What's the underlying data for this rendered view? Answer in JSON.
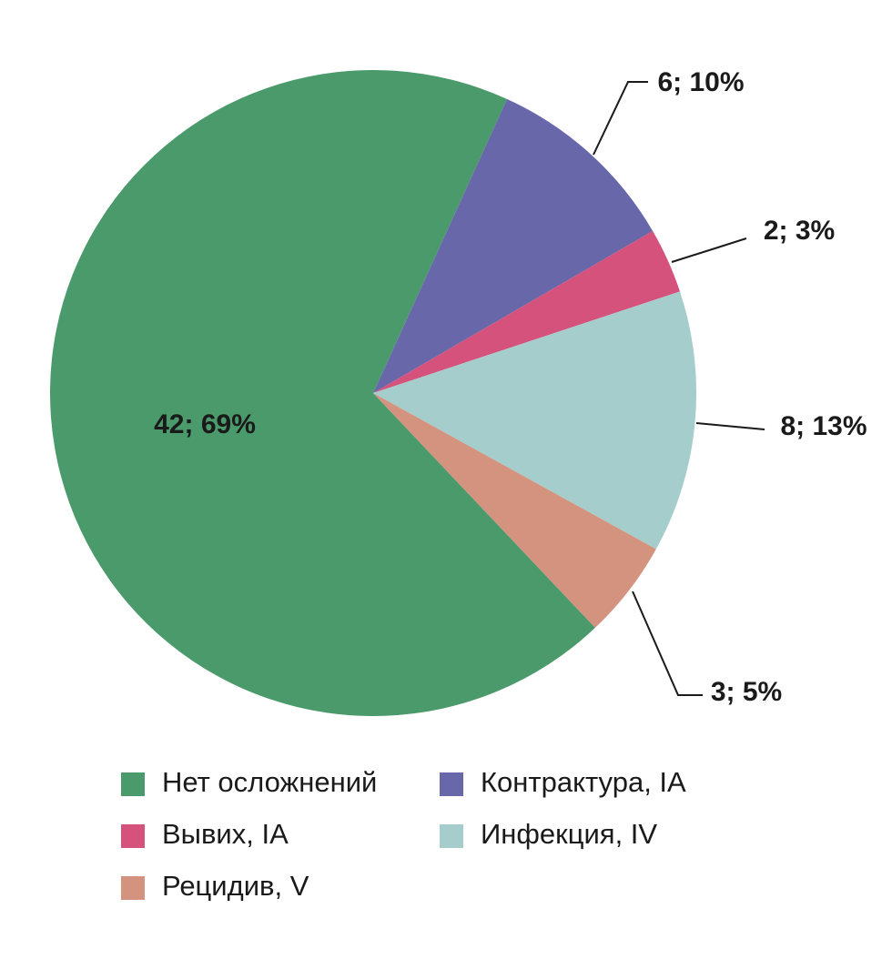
{
  "chart_data": {
    "type": "pie",
    "categories": [
      "Нет осложнений",
      "Контрактура, IA",
      "Вывих, IA",
      "Инфекция, IV",
      "Рецидив, V"
    ],
    "values": [
      42,
      6,
      2,
      8,
      3
    ],
    "value_labels": [
      "42; 69%",
      "6; 10%",
      "2; 3%",
      "8; 13%",
      "3; 5%"
    ],
    "colors": [
      "#4a9a6c",
      "#6767aa",
      "#d4527c",
      "#a5cdcb",
      "#d4937f"
    ]
  }
}
